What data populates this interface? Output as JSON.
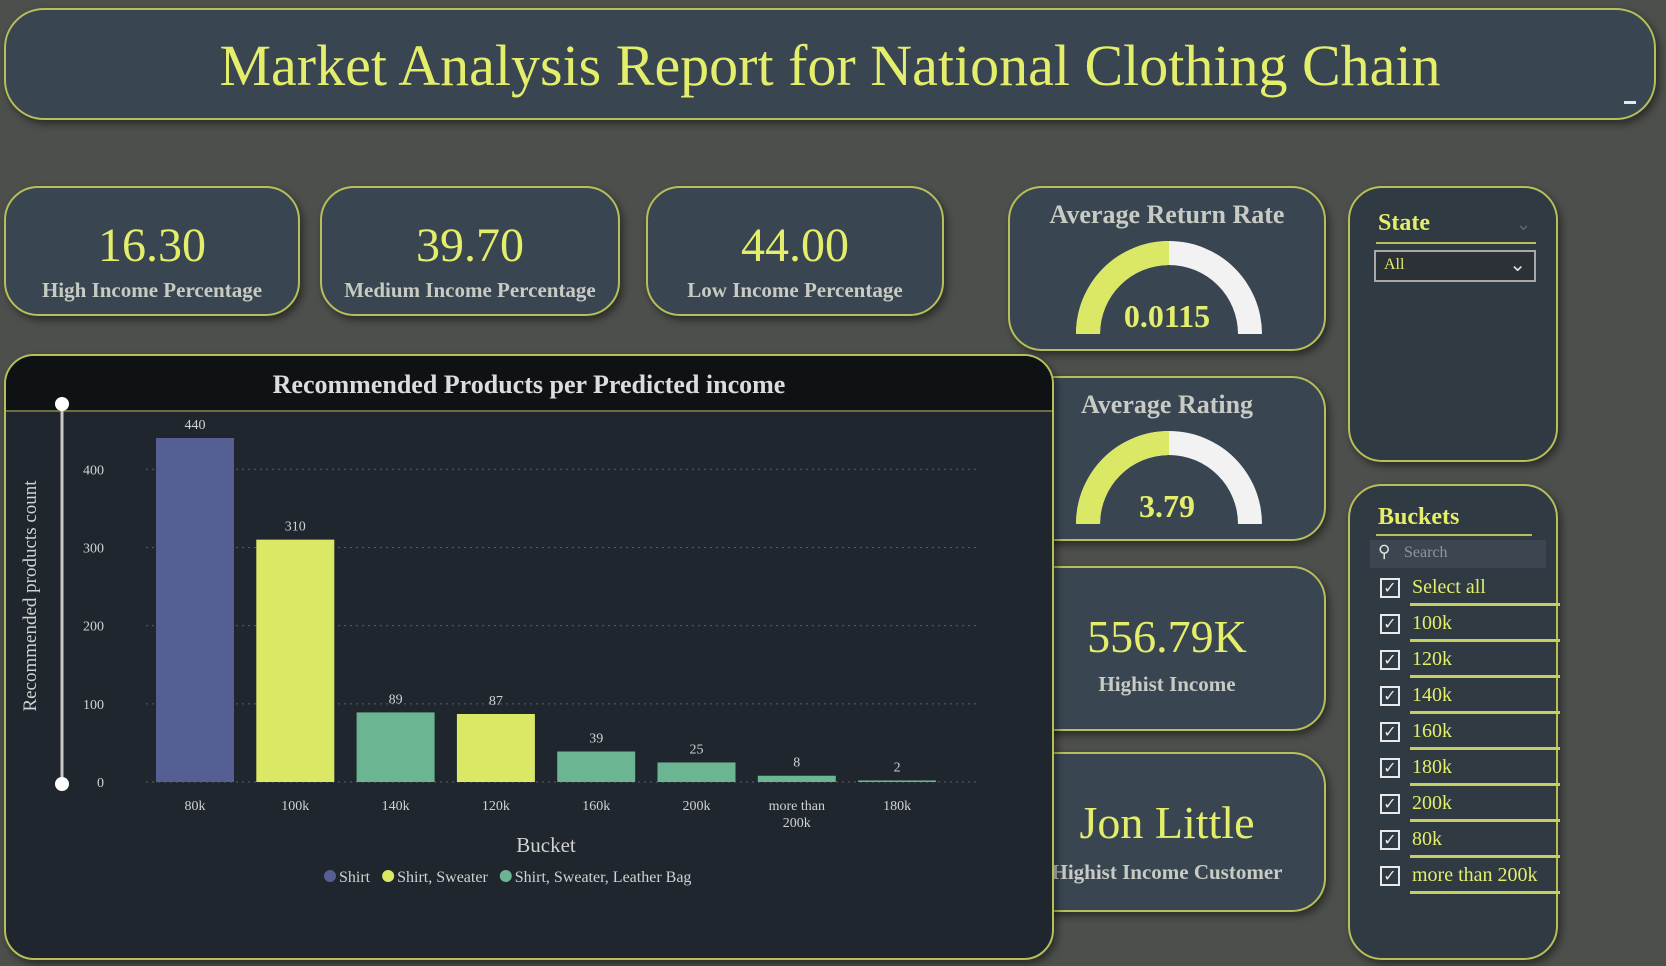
{
  "title": "Market Analysis Report for National Clothing Chain",
  "kpis": [
    {
      "value": "16.30",
      "label": "High Income Percentage"
    },
    {
      "value": "39.70",
      "label": "Medium Income Percentage"
    },
    {
      "value": "44.00",
      "label": "Low Income Percentage"
    }
  ],
  "gauges": [
    {
      "title": "Average Return Rate",
      "value_text": "0.0115",
      "fill_fraction": 0.5
    },
    {
      "title": "Average Rating",
      "value_text": "3.79",
      "fill_fraction": 0.5
    }
  ],
  "highest_income": {
    "value": "556.79K",
    "label": "Highist Income"
  },
  "highest_customer": {
    "value": "Jon Little",
    "label": "Highist Income Customer"
  },
  "state_slicer": {
    "title": "State",
    "selected": "All"
  },
  "buckets_slicer": {
    "title": "Buckets",
    "search_placeholder": "Search",
    "items": [
      {
        "label": "Select all",
        "checked": true
      },
      {
        "label": "100k",
        "checked": true
      },
      {
        "label": "120k",
        "checked": true
      },
      {
        "label": "140k",
        "checked": true
      },
      {
        "label": "160k",
        "checked": true
      },
      {
        "label": "180k",
        "checked": true
      },
      {
        "label": "200k",
        "checked": true
      },
      {
        "label": "80k",
        "checked": true
      },
      {
        "label": "more than 200k",
        "checked": true
      }
    ]
  },
  "colors": {
    "accent": "#e4ee6a",
    "shirt": "#565f94",
    "shirt_sweater": "#dbe866",
    "shirt_sweater_bag": "#6cb593",
    "gauge_bg": "#f2f2f2"
  },
  "chart_data": {
    "type": "bar",
    "title": "Recommended Products per Predicted income",
    "xlabel": "Bucket",
    "ylabel": "Recommended products count",
    "ylim": [
      0,
      440
    ],
    "yticks": [
      0,
      100,
      200,
      300,
      400
    ],
    "grid": true,
    "categories": [
      "80k",
      "100k",
      "140k",
      "120k",
      "160k",
      "200k",
      "more than 200k",
      "180k"
    ],
    "values": [
      440,
      310,
      89,
      87,
      39,
      25,
      8,
      2
    ],
    "bar_series": [
      "Shirt",
      "Shirt, Sweater",
      "Shirt, Sweater, Leather Bag",
      "Shirt, Sweater",
      "Shirt, Sweater, Leather Bag",
      "Shirt, Sweater, Leather Bag",
      "Shirt, Sweater, Leather Bag",
      "Shirt, Sweater, Leather Bag"
    ],
    "legend": [
      {
        "name": "Shirt",
        "color": "#565f94"
      },
      {
        "name": "Shirt, Sweater",
        "color": "#dbe866"
      },
      {
        "name": "Shirt, Sweater, Leather Bag",
        "color": "#6cb593"
      }
    ],
    "legend_position": "bottom"
  }
}
